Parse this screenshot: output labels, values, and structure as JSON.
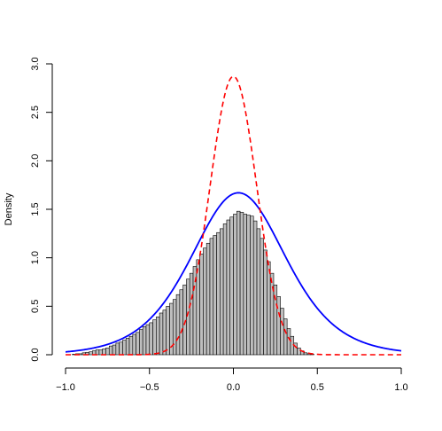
{
  "chart_data": {
    "type": "histogram",
    "title": "",
    "xlabel": "",
    "ylabel": "Density",
    "xlim": [
      -1.0,
      1.0
    ],
    "ylim": [
      0,
      3.0
    ],
    "x_ticks": [
      -1.0,
      -0.5,
      0.0,
      0.5,
      1.0
    ],
    "x_tick_labels": [
      "−1.0",
      "−0.5",
      "0.0",
      "0.5",
      "1.0"
    ],
    "y_ticks": [
      0.0,
      0.5,
      1.0,
      1.5,
      2.0,
      2.5,
      3.0
    ],
    "y_tick_labels": [
      "0.0",
      "0.5",
      "1.0",
      "1.5",
      "2.0",
      "2.5",
      "3.0"
    ],
    "grid": false,
    "legend": "none",
    "histogram": {
      "bin_width": 0.02,
      "bin_start": -0.96,
      "values": [
        0.005,
        0.01,
        0.01,
        0.02,
        0.025,
        0.03,
        0.04,
        0.05,
        0.05,
        0.06,
        0.07,
        0.09,
        0.1,
        0.12,
        0.13,
        0.15,
        0.17,
        0.19,
        0.21,
        0.23,
        0.26,
        0.29,
        0.31,
        0.33,
        0.36,
        0.39,
        0.43,
        0.46,
        0.5,
        0.53,
        0.57,
        0.62,
        0.67,
        0.72,
        0.78,
        0.84,
        0.91,
        0.98,
        1.04,
        1.1,
        1.15,
        1.2,
        1.23,
        1.26,
        1.3,
        1.35,
        1.39,
        1.42,
        1.45,
        1.48,
        1.47,
        1.45,
        1.44,
        1.43,
        1.38,
        1.3,
        1.2,
        1.08,
        0.96,
        0.84,
        0.72,
        0.6,
        0.48,
        0.37,
        0.27,
        0.19,
        0.12,
        0.07,
        0.04,
        0.02,
        0.01,
        0.005
      ],
      "fill": "#bebebe",
      "stroke": "#000000"
    },
    "series": [
      {
        "style": "solid",
        "color": "#0000ff",
        "mean": 0.03,
        "scale": 0.19,
        "dist": "logistic",
        "peak": 1.67
      },
      {
        "style": "dashed",
        "color": "#ff0000",
        "mean": 0.0,
        "sd": 0.139,
        "dist": "normal",
        "peak": 2.87
      }
    ]
  }
}
